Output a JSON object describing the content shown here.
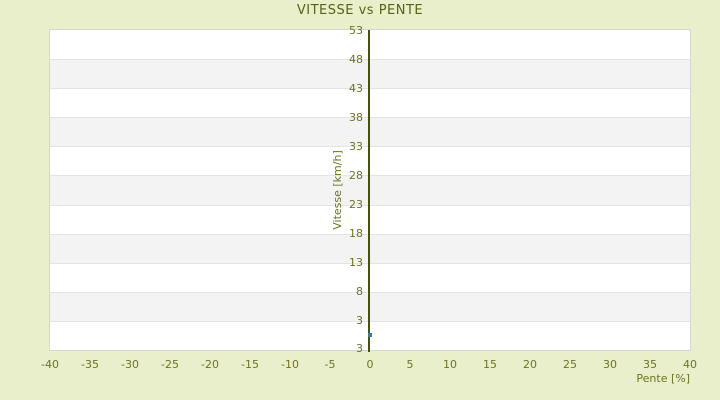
{
  "title": "VITESSE vs PENTE",
  "colors": {
    "background": "#e9efcb",
    "title_text": "#57611a",
    "tick_text": "#6d7422",
    "plot_background": "#ffffff",
    "band_alternate": "#f3f3f3",
    "gridline": "#e4e4e4",
    "plot_border": "#d6d6d6",
    "axis_line": "#47510e",
    "point": "#3a7ca3"
  },
  "chart_data": {
    "type": "scatter",
    "title": "VITESSE vs PENTE",
    "xlabel": "Pente [%]",
    "ylabel": "Vitesse [km/h]",
    "x_ticks": [
      -40,
      -35,
      -30,
      -25,
      -20,
      -15,
      -10,
      -5,
      0,
      5,
      10,
      15,
      20,
      25,
      30,
      35,
      40
    ],
    "y_ticks": [
      53,
      48,
      43,
      38,
      33,
      28,
      23,
      18,
      13,
      8,
      3
    ],
    "y_axis_bottom_label": "3",
    "xlim": [
      -40,
      40
    ],
    "y_top_value": 53,
    "y_bottom_edge_value": -2,
    "grid": "horizontal-alternating-bands",
    "legend": "none",
    "series": [
      {
        "name": "vitesse",
        "points": [
          {
            "x": 0,
            "y": 0.5
          }
        ]
      }
    ]
  }
}
